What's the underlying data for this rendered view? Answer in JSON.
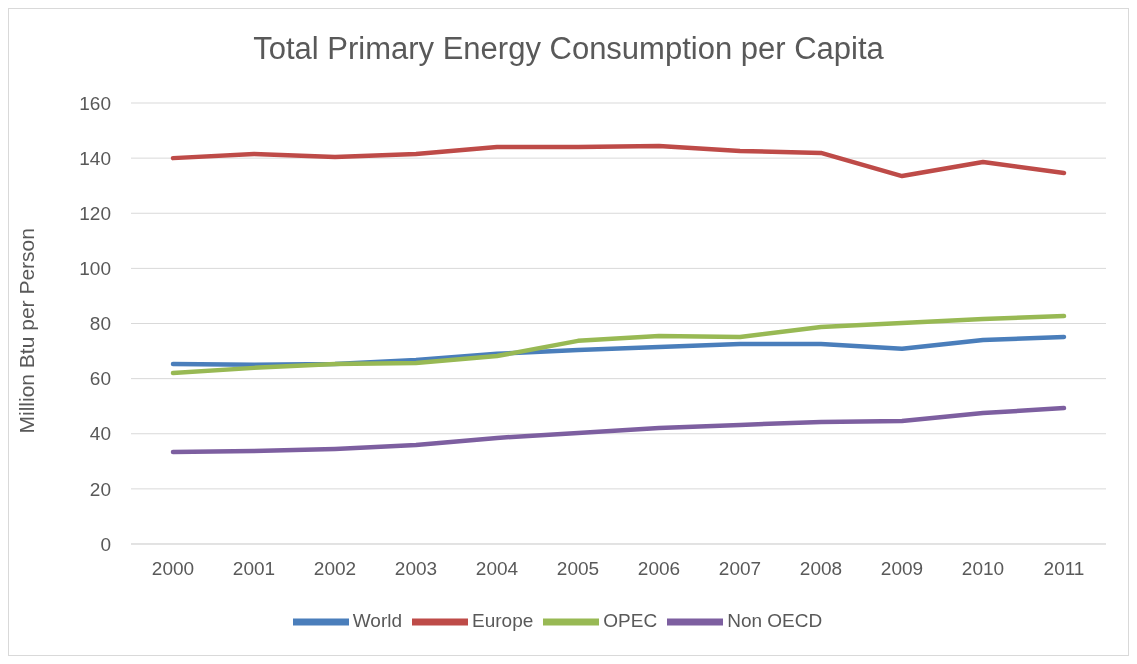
{
  "chart_data": {
    "type": "line",
    "title": "Total Primary Energy Consumption per Capita",
    "ylabel": "Million Btu per Person",
    "categories": [
      "2000",
      "2001",
      "2002",
      "2003",
      "2004",
      "2005",
      "2006",
      "2007",
      "2008",
      "2009",
      "2010",
      "2011"
    ],
    "series": [
      {
        "name": "World",
        "color": "#4a7ebb",
        "values": [
          65.3,
          65,
          65.3,
          66.8,
          69,
          70.4,
          71.5,
          72.6,
          72.6,
          70.8,
          74,
          75.1
        ]
      },
      {
        "name": "Europe",
        "color": "#be4b48",
        "values": [
          140,
          141.5,
          140.4,
          141.5,
          144,
          144,
          144.4,
          142.6,
          141.9,
          133.5,
          138.6,
          134.6
        ]
      },
      {
        "name": "OPEC",
        "color": "#98b954",
        "values": [
          62,
          63.9,
          65.3,
          65.7,
          68.2,
          73.7,
          75.5,
          75.1,
          78.7,
          80.2,
          81.6,
          82.7
        ]
      },
      {
        "name": "Non OECD",
        "color": "#7d5fa0",
        "values": [
          33.4,
          33.7,
          34.5,
          35.9,
          38.5,
          40.3,
          42.1,
          43.2,
          44.3,
          44.6,
          47.5,
          49.3
        ]
      }
    ],
    "ylim": [
      0,
      160
    ],
    "yticks": [
      0,
      20,
      40,
      60,
      80,
      100,
      120,
      140,
      160
    ],
    "grid": "y",
    "legend": "bottom",
    "marker": "none",
    "line_style": "solid"
  }
}
